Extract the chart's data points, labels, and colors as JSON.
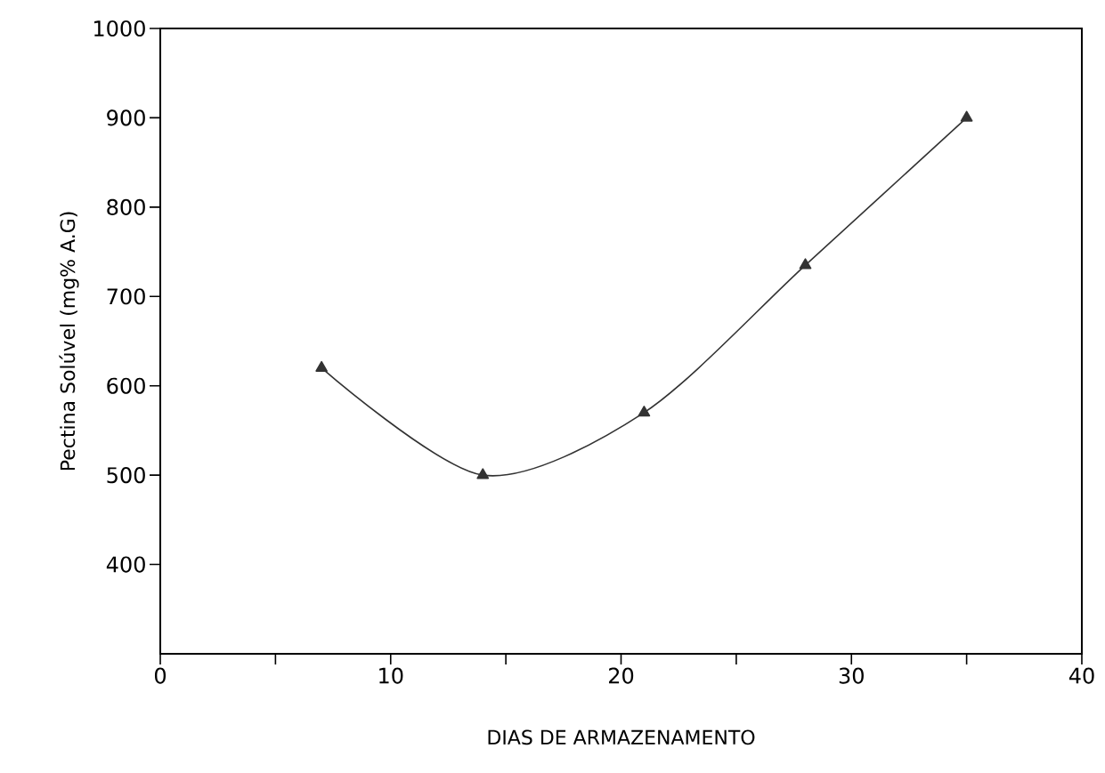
{
  "chart_data": {
    "type": "line",
    "xlabel": "DIAS DE ARMAZENAMENTO",
    "ylabel": "Pectina Solúvel (mg% A.G)",
    "x": [
      7,
      14,
      21,
      28,
      35
    ],
    "series": [
      {
        "color": "#333333",
        "values": [
          620,
          500,
          570,
          735,
          900
        ]
      }
    ],
    "marker": "triangle",
    "line_style": "solid",
    "xlim": [
      0,
      40
    ],
    "ylim": [
      300,
      1000
    ],
    "xticks": [
      0,
      {
        "value": 5,
        "label": null
      },
      10,
      {
        "value": 15,
        "label": null
      },
      20,
      {
        "value": 25,
        "label": null
      },
      30,
      {
        "value": 35,
        "label": null
      },
      40
    ],
    "yticks": [
      400,
      500,
      600,
      700,
      800,
      900,
      1000
    ]
  }
}
